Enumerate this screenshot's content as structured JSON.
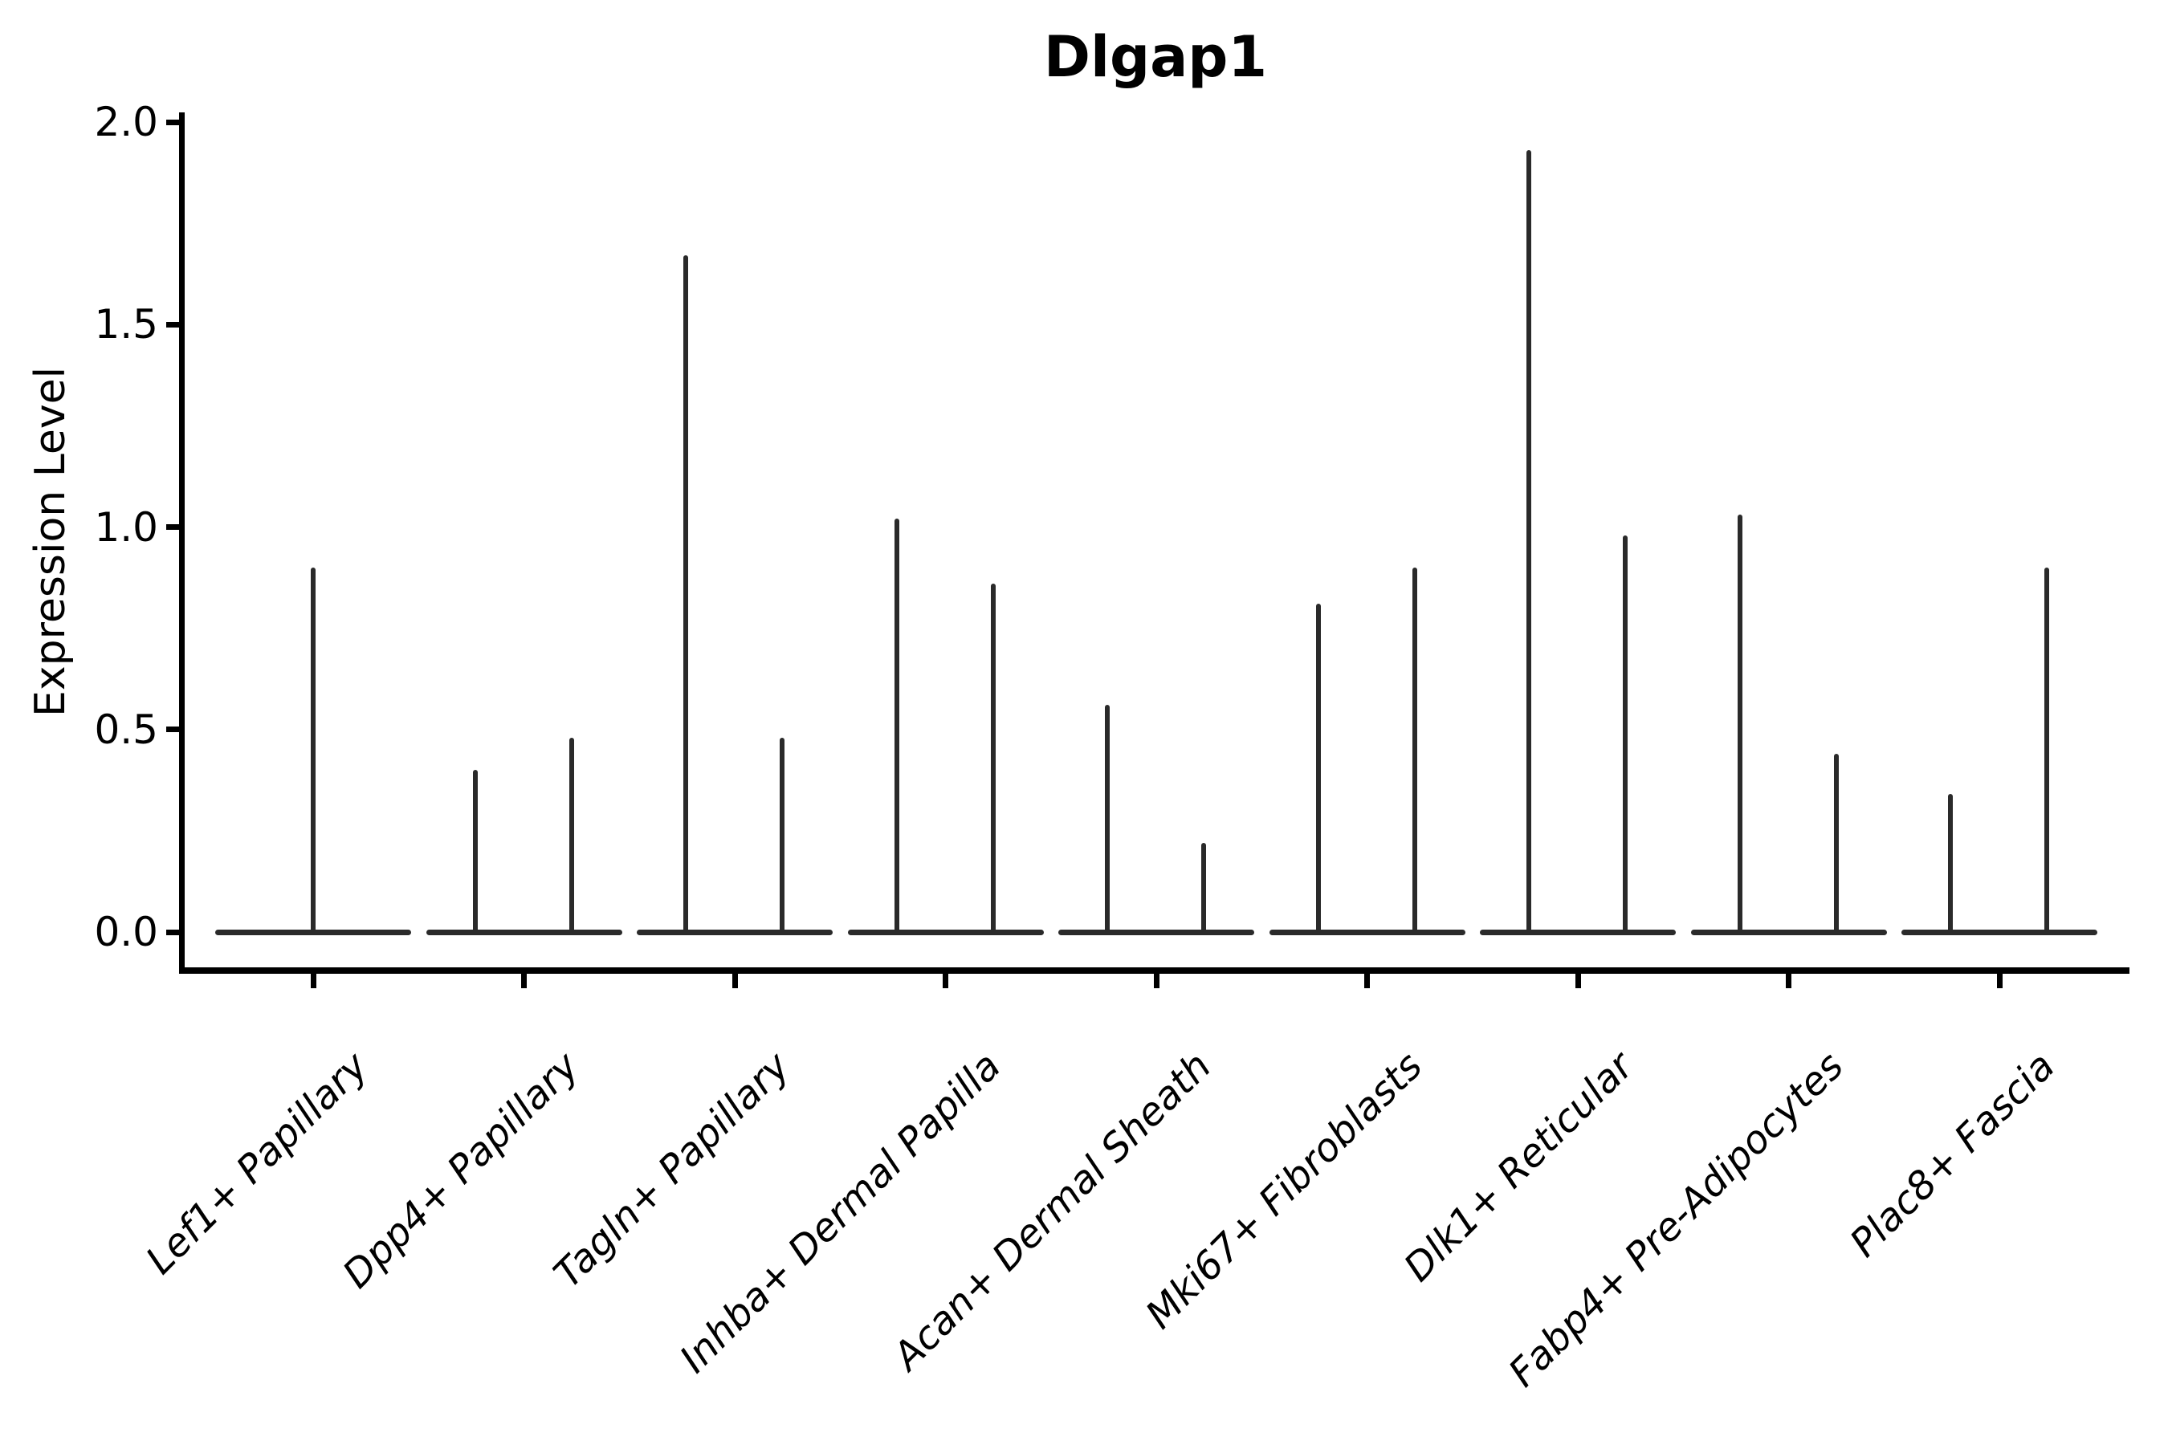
{
  "title": "Dlgap1",
  "y_axis": {
    "label": "Expression Level",
    "tick_labels": [
      "0.0",
      "0.5",
      "1.0",
      "1.5",
      "2.0"
    ]
  },
  "colors": {
    "background": "#ffffff",
    "axis": "#000000",
    "text": "#000000",
    "violin": "#2a2a2a"
  },
  "chart_data": {
    "type": "violin",
    "title": "Dlgap1",
    "xlabel": "",
    "ylabel": "Expression Level",
    "ylim": [
      0.0,
      2.0
    ],
    "yticks": [
      0.0,
      0.5,
      1.0,
      1.5,
      2.0
    ],
    "grid": false,
    "legend": false,
    "description": "Near-zero-width violins: each category shows a flat density baseline at expression 0 plus thin vertical density spikes reaching the maximum expression values.",
    "categories": [
      "Lef1+ Papillary",
      "Dpp4+ Papillary",
      "Tagln+ Papillary",
      "Inhba+ Dermal Papilla",
      "Acan+ Dermal Sheath",
      "Mki67+ Fibroblasts",
      "Dlk1+ Reticular",
      "Fabp4+ Pre-Adipocytes",
      "Plac8+ Fascia"
    ],
    "series": [
      {
        "name": "Lef1+ Papillary",
        "baseline_value": 0.0,
        "spike_maxima": [
          0.9
        ]
      },
      {
        "name": "Dpp4+ Papillary",
        "baseline_value": 0.0,
        "spike_maxima": [
          0.4,
          0.48
        ]
      },
      {
        "name": "Tagln+ Papillary",
        "baseline_value": 0.0,
        "spike_maxima": [
          1.67,
          0.48
        ]
      },
      {
        "name": "Inhba+ Dermal Papilla",
        "baseline_value": 0.0,
        "spike_maxima": [
          1.02,
          0.86
        ]
      },
      {
        "name": "Acan+ Dermal Sheath",
        "baseline_value": 0.0,
        "spike_maxima": [
          0.56,
          0.22
        ]
      },
      {
        "name": "Mki67+ Fibroblasts",
        "baseline_value": 0.0,
        "spike_maxima": [
          0.81,
          0.9
        ]
      },
      {
        "name": "Dlk1+ Reticular",
        "baseline_value": 0.0,
        "spike_maxima": [
          1.93,
          0.98
        ]
      },
      {
        "name": "Fabp4+ Pre-Adipocytes",
        "baseline_value": 0.0,
        "spike_maxima": [
          1.03,
          0.44
        ]
      },
      {
        "name": "Plac8+ Fascia",
        "baseline_value": 0.0,
        "spike_maxima": [
          0.34,
          0.9
        ]
      }
    ]
  }
}
